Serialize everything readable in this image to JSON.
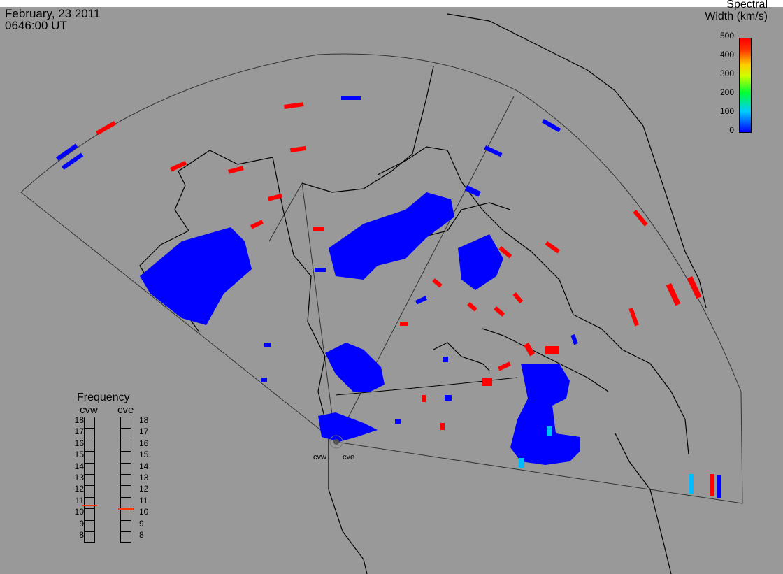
{
  "header": {
    "date": "February, 23 2011",
    "time": "0646:00 UT"
  },
  "colorbar": {
    "title_line1": "Spectral",
    "title_line2": "Width (km/s)",
    "ticks": [
      "500",
      "400",
      "300",
      "200",
      "100",
      "0"
    ],
    "colors": {
      "low": "#0000ff",
      "mid": "#00ff33",
      "high": "#ff0000"
    }
  },
  "frequency": {
    "title": "Frequency",
    "left_radar": "cvw",
    "right_radar": "cve",
    "scale": [
      "18",
      "17",
      "16",
      "15",
      "14",
      "13",
      "12",
      "11",
      "10",
      "9",
      "8"
    ],
    "cvw_value_mhz": 10.8,
    "cve_value_mhz": 10.5
  },
  "radars": {
    "west_label": "cvw",
    "east_label": "cve"
  },
  "colors": {
    "background": "#999999",
    "coast": "#000000",
    "echo_blue": "#0000ff",
    "echo_red": "#ff0000",
    "echo_cyan": "#00bbff"
  }
}
